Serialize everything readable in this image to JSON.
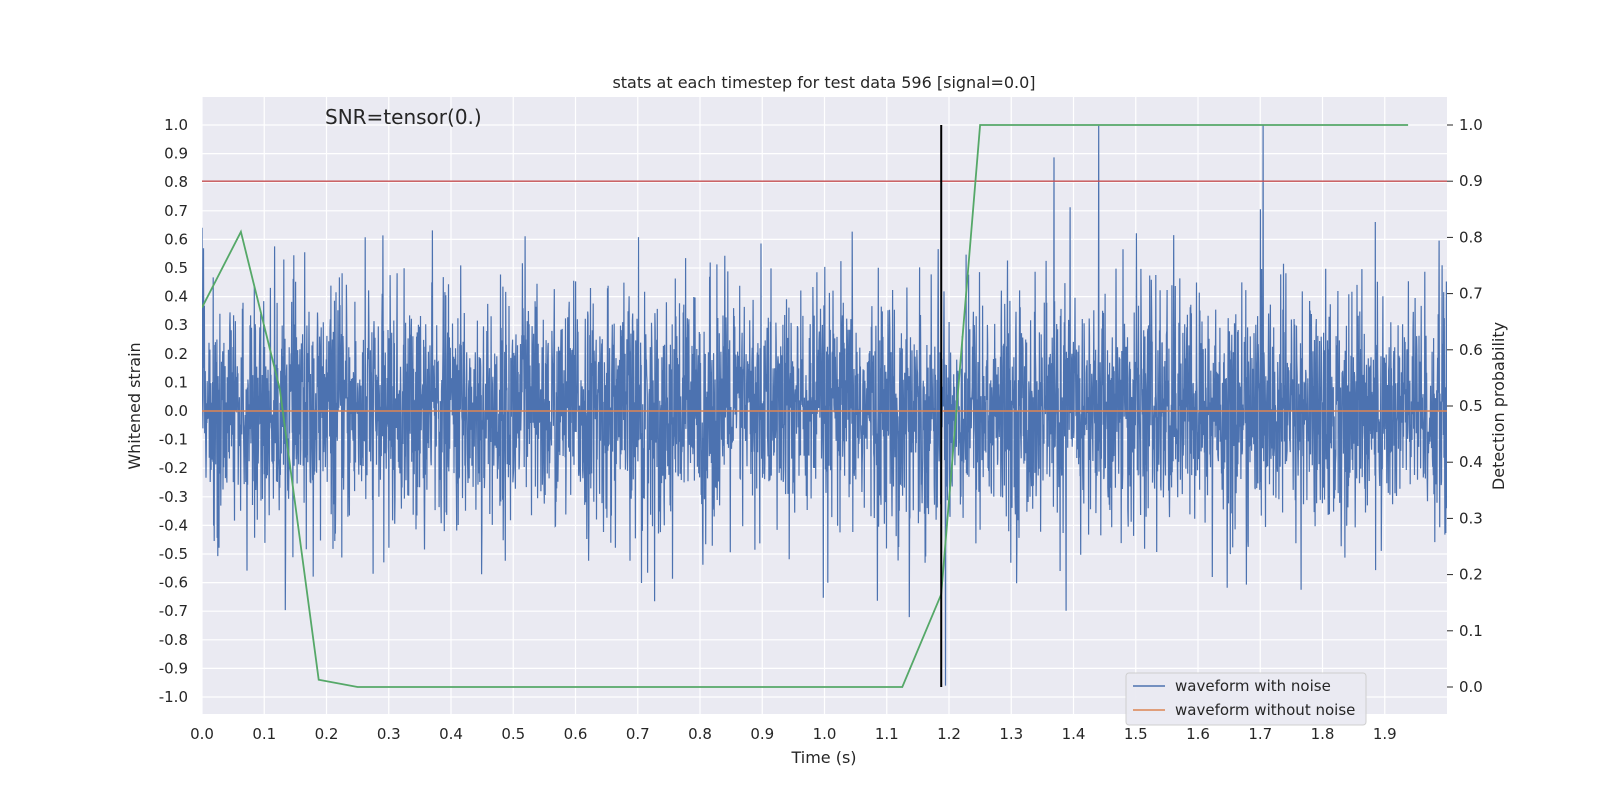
{
  "chart_data": {
    "type": "line",
    "title": "stats at each timestep for test data 596 [signal=0.0]",
    "xlabel": "Time (s)",
    "ylabel": "Whitened strain",
    "y2label": "Detection probability",
    "annotation": "SNR=tensor(0.)",
    "xlim": [
      0.0,
      2.0
    ],
    "ylim": [
      -1.08,
      1.1
    ],
    "y2lim": [
      -0.05,
      1.03
    ],
    "xticks": [
      "0.0",
      "0.1",
      "0.2",
      "0.3",
      "0.4",
      "0.5",
      "0.6",
      "0.7",
      "0.8",
      "0.9",
      "1.0",
      "1.1",
      "1.2",
      "1.3",
      "1.4",
      "1.5",
      "1.6",
      "1.7",
      "1.8",
      "1.9"
    ],
    "yticks": [
      "1.0",
      "0.9",
      "0.8",
      "0.7",
      "0.6",
      "0.5",
      "0.4",
      "0.3",
      "0.2",
      "0.1",
      "0.0",
      "-0.1",
      "-0.2",
      "-0.3",
      "-0.4",
      "-0.5",
      "-0.6",
      "-0.7",
      "-0.8",
      "-0.9",
      "-1.0"
    ],
    "y2ticks": [
      "1.0",
      "0.9",
      "0.8",
      "0.7",
      "0.6",
      "0.5",
      "0.4",
      "0.3",
      "0.2",
      "0.1",
      "0.0"
    ],
    "grid": true,
    "legend_position": "lower-right",
    "colors": {
      "background": "#eaeaf2",
      "grid": "#ffffff",
      "noise": "#4c72b0",
      "clean": "#dd8452",
      "probability": "#55a868",
      "threshold": "#c44e52",
      "marker": "#000000"
    },
    "series": [
      {
        "name": "waveform with noise",
        "color": "#4c72b0",
        "sample_rate": 2048,
        "amplitude_range": [
          -0.96,
          1.0
        ]
      },
      {
        "name": "waveform without noise",
        "color": "#dd8452",
        "x": [
          0.0,
          2.0
        ],
        "y": [
          0.0,
          0.0
        ]
      },
      {
        "axis": "y2",
        "color": "#55a868",
        "x": [
          0.0,
          0.0625,
          0.125,
          0.1875,
          0.25,
          0.3125,
          0.375,
          0.4375,
          0.5,
          0.5625,
          0.625,
          0.6875,
          0.75,
          0.8125,
          0.875,
          0.9375,
          1.0,
          1.0625,
          1.125,
          1.1875,
          1.25,
          1.3125,
          1.375,
          1.4375,
          1.5,
          1.5625,
          1.625,
          1.6875,
          1.75,
          1.8125,
          1.875,
          1.9375
        ],
        "y": [
          0.675,
          0.81,
          0.53,
          0.013,
          0.0,
          0.0,
          0.0,
          0.0,
          0.0,
          0.0,
          0.0,
          0.0,
          0.0,
          0.0,
          0.0,
          0.0,
          0.0,
          0.0,
          0.0,
          0.165,
          1.0,
          1.0,
          1.0,
          1.0,
          1.0,
          1.0,
          1.0,
          1.0,
          1.0,
          1.0,
          1.0,
          1.0
        ]
      },
      {
        "axis": "y2",
        "color": "#c44e52",
        "x": [
          0.0,
          2.0
        ],
        "y": [
          0.9,
          0.9
        ]
      },
      {
        "axis": "y2",
        "color": "#000000",
        "x": [
          1.1875,
          1.1875
        ],
        "y": [
          0.0,
          1.0
        ]
      }
    ]
  }
}
